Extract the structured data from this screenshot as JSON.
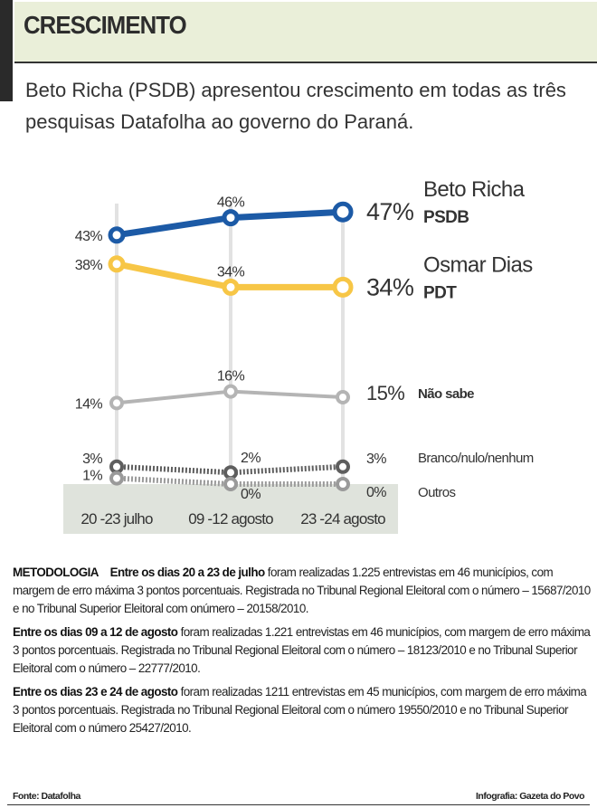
{
  "header": {
    "title": "CRESCIMENTO"
  },
  "lead": "Beto Richa (PSDB) apresentou crescimento em todas as três pesquisas Datafolha ao governo do Paraná.",
  "chart_data": {
    "type": "line",
    "categories": [
      "20 -23 julho",
      "09 -12 agosto",
      "23 -24 agosto"
    ],
    "series": [
      {
        "name": "Beto Richa",
        "party": "PSDB",
        "values": [
          43,
          46,
          47
        ],
        "color": "#1c5aa6",
        "style": "solid-thick"
      },
      {
        "name": "Osmar Dias",
        "party": "PDT",
        "values": [
          38,
          34,
          34
        ],
        "color": "#f7c646",
        "style": "solid-thick"
      },
      {
        "name": "Não sabe",
        "values": [
          14,
          16,
          15
        ],
        "color": "#b4b4b4",
        "style": "solid"
      },
      {
        "name": "Branco/nulo/nenhum",
        "values": [
          3,
          2,
          3
        ],
        "color": "#5e5e5e",
        "style": "dotted"
      },
      {
        "name": "Outros",
        "values": [
          1,
          0,
          0
        ],
        "color": "#9a9a9a",
        "style": "dotted"
      }
    ],
    "unit": "%",
    "grid": "vertical lines at each survey"
  },
  "methodology": {
    "label": "METODOLOGIA",
    "p1_bold": "Entre os dias 20 a 23 de julho",
    "p1": " foram realizadas 1.225 entrevistas em 46 municípios, com margem de erro máxima 3 pontos porcentuais. Registrada no Tribunal Regional Eleitoral com o número – 15687/2010 e no Tribunal Superior Eleitoral com onúmero – 20158/2010.",
    "p2_bold": "Entre os dias 09 a 12 de agosto",
    "p2": " foram realizadas 1.221 entrevistas em 46 municípios, com margem de erro máxima 3 pontos porcentuais. Registrada no Tribunal Regional Eleitoral com o número – 18123/2010 e no Tribunal Superior Eleitoral com o número – 22777/2010.",
    "p3_bold": "Entre os dias 23 e  24 de agosto",
    "p3": " foram realizadas 1211 entrevistas em 45 municípios, com margem de erro máxima 3 pontos porcentuais. Registrada no Tribunal Regional Eleitoral com o número 19550/2010 e no Tribunal Superior Eleitoral com o número 25427/2010."
  },
  "footer": {
    "source": "Fonte: Datafolha",
    "credit": "Infografia: Gazeta do Povo"
  }
}
